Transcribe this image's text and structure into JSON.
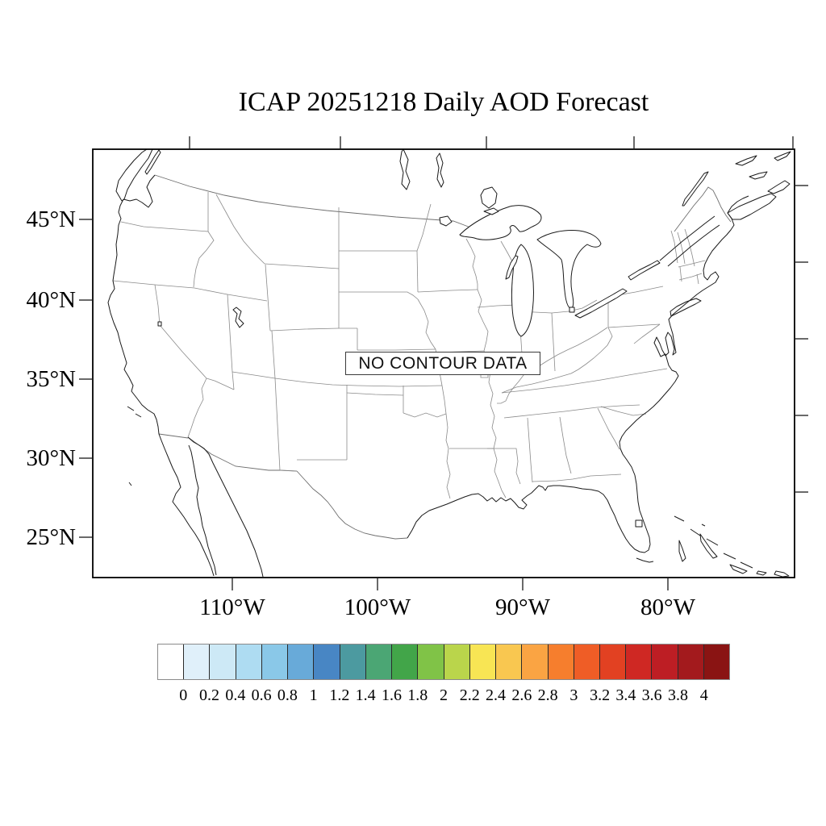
{
  "title": "ICAP 20251218 Daily AOD Forecast",
  "map": {
    "no_data_label": "NO CONTOUR DATA",
    "y_axis_labels": [
      "45°N",
      "40°N",
      "35°N",
      "30°N",
      "25°N"
    ],
    "x_axis_labels": [
      "110°W",
      "100°W",
      "90°W",
      "80°W"
    ]
  },
  "axes": {
    "left_tick_y": [
      272,
      372,
      470,
      568,
      666
    ],
    "right_tick_y": [
      230,
      325,
      420,
      515,
      610
    ],
    "bottom_tick_x": [
      288,
      468,
      648,
      828
    ],
    "top_tick_x": [
      235,
      422,
      603,
      786,
      983
    ]
  },
  "colorbar": {
    "tick_labels": [
      "0",
      "0.2",
      "0.4",
      "0.6",
      "0.8",
      "1",
      "1.2",
      "1.4",
      "1.6",
      "1.8",
      "2",
      "2.2",
      "2.4",
      "2.6",
      "2.8",
      "3",
      "3.2",
      "3.4",
      "3.6",
      "3.8",
      "4"
    ],
    "cell_colors": [
      "#ffffff",
      "#e0f0fa",
      "#cde9f6",
      "#aedcf2",
      "#8ac8e8",
      "#68aad9",
      "#4886c4",
      "#4c9aa0",
      "#4ba674",
      "#42a549",
      "#80c347",
      "#bad54b",
      "#f8e554",
      "#f9c750",
      "#faa443",
      "#f67e2d",
      "#ef5d26",
      "#e24122",
      "#cf2823",
      "#bd1e24",
      "#a31a1d",
      "#8a1413"
    ]
  },
  "colors": {
    "frame": "#000000",
    "coastline": "#1a1a1a",
    "state_line": "#8a8a8a",
    "country_border": "#6e6e6e",
    "tick": "#444444"
  }
}
